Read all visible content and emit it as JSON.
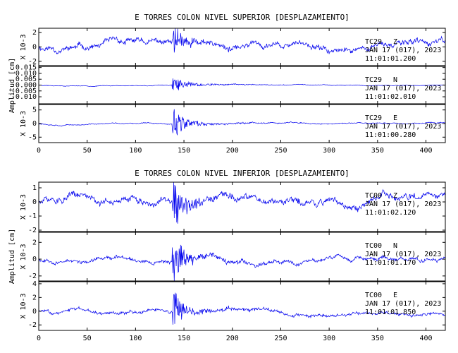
{
  "chart_data": [
    {
      "type": "line",
      "title": "E TORRES COLON NIVEL SUPERIOR [DESPLAZAMIENTO]",
      "ylabel": "Amplitud [cm]",
      "xlabel": "",
      "xlim": [
        0,
        420
      ],
      "x_ticks": [
        "0",
        "50",
        "100",
        "150",
        "200",
        "250",
        "300",
        "350",
        "400"
      ],
      "panels": [
        {
          "station": "TC29",
          "component": "Z",
          "date": "JAN 17 (017), 2023",
          "time": "11:01:01.200",
          "scale_label": "X 10-3",
          "ylim": [
            -2.6,
            2.6
          ],
          "y_ticks": [
            -2,
            0,
            2
          ],
          "y_tick_labels": [
            "-2",
            "0",
            "2"
          ],
          "event_onset": 138,
          "peak": 2.4,
          "background": 0.9,
          "seed": 11
        },
        {
          "station": "TC29",
          "component": "N",
          "date": "JAN 17 (017), 2023",
          "time": "11:01:02.010",
          "scale_label": "",
          "ylim": [
            -0.016,
            0.016
          ],
          "y_ticks": [
            -0.01,
            -0.005,
            0.0,
            0.005,
            0.01,
            0.015
          ],
          "y_tick_labels": [
            "-0.010",
            "-0.005",
            "0.000",
            "0.005",
            "0.010",
            "0.015"
          ],
          "event_onset": 138,
          "peak": 0.009,
          "background": 0.0006,
          "seed": 23
        },
        {
          "station": "TC29",
          "component": "E",
          "date": "JAN 17 (017), 2023",
          "time": "11:01:00.280",
          "scale_label": "X 10-3",
          "ylim": [
            -7,
            7
          ],
          "y_ticks": [
            -5,
            0,
            5
          ],
          "y_tick_labels": [
            "-5",
            "0",
            "5"
          ],
          "event_onset": 138,
          "peak": 6.5,
          "background": 0.4,
          "seed": 37
        }
      ]
    },
    {
      "type": "line",
      "title": "E TORRES COLON NIVEL INFERIOR [DESPLAZAMIENTO]",
      "ylabel": "Amplitud [cm]",
      "xlabel": "",
      "xlim": [
        0,
        420
      ],
      "x_ticks": [
        "0",
        "50",
        "100",
        "150",
        "200",
        "250",
        "300",
        "350",
        "400"
      ],
      "panels": [
        {
          "station": "TC00",
          "component": "Z",
          "date": "JAN 17 (017), 2023",
          "time": "11:01:02.120",
          "scale_label": "X 10-3",
          "ylim": [
            -2.1,
            1.4
          ],
          "y_ticks": [
            -2,
            -1,
            0,
            1
          ],
          "y_tick_labels": [
            "-2",
            "-1",
            "0",
            "1"
          ],
          "event_onset": 138,
          "peak": 1.9,
          "background": 0.55,
          "seed": 51
        },
        {
          "station": "TC00",
          "component": "N",
          "date": "JAN 17 (017), 2023",
          "time": "11:01:01.170",
          "scale_label": "X 10-3",
          "ylim": [
            -2.6,
            3.2
          ],
          "y_ticks": [
            -2,
            0,
            2
          ],
          "y_tick_labels": [
            "-2",
            "0",
            "2"
          ],
          "event_onset": 138,
          "peak": 3.0,
          "background": 0.5,
          "seed": 67
        },
        {
          "station": "TC00",
          "component": "E",
          "date": "JAN 17 (017), 2023",
          "time": "11:01:01.850",
          "scale_label": "X 10-3",
          "ylim": [
            -2.8,
            4.3
          ],
          "y_ticks": [
            -2,
            0,
            2,
            4
          ],
          "y_tick_labels": [
            "-2",
            "0",
            "2",
            "4"
          ],
          "event_onset": 138,
          "peak": 3.2,
          "background": 0.55,
          "seed": 83
        }
      ]
    }
  ]
}
